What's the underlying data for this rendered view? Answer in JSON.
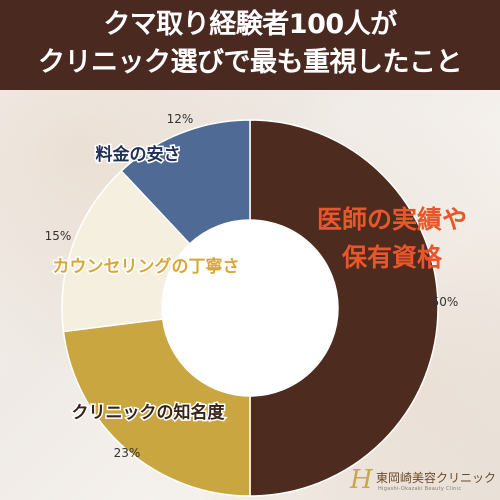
{
  "header": {
    "title_line1": "クマ取り経験者100人が",
    "title_line2": "クリニック選びで最も重視したこと"
  },
  "logo": {
    "mark": "H",
    "name": "東岡崎美容クリニック",
    "subtitle": "Higashi-Okazaki Beauty Clinic"
  },
  "colors": {
    "header_bg": "#4a2a20",
    "slice_qualification": "#4e2b1f",
    "slice_awareness": "#c9a640",
    "slice_counseling": "#f5efe0",
    "slice_price": "#4f6a94",
    "label_qualification": "#e8562a",
    "label_awareness": "#3a2418",
    "label_counseling": "#d7a73a",
    "label_price": "#1f2f55"
  },
  "chart_data": {
    "type": "pie",
    "donut": true,
    "start": "top",
    "direction": "clockwise",
    "slices": [
      {
        "label_lines": [
          "医師の実績や",
          "保有資格"
        ],
        "value": 50,
        "pct_label": "50%"
      },
      {
        "label_lines": [
          "クリニックの知名度"
        ],
        "value": 23,
        "pct_label": "23%"
      },
      {
        "label_lines": [
          "カウンセリングの丁寧さ"
        ],
        "value": 15,
        "pct_label": "15%"
      },
      {
        "label_lines": [
          "料金の安さ"
        ],
        "value": 12,
        "pct_label": "12%"
      }
    ]
  }
}
